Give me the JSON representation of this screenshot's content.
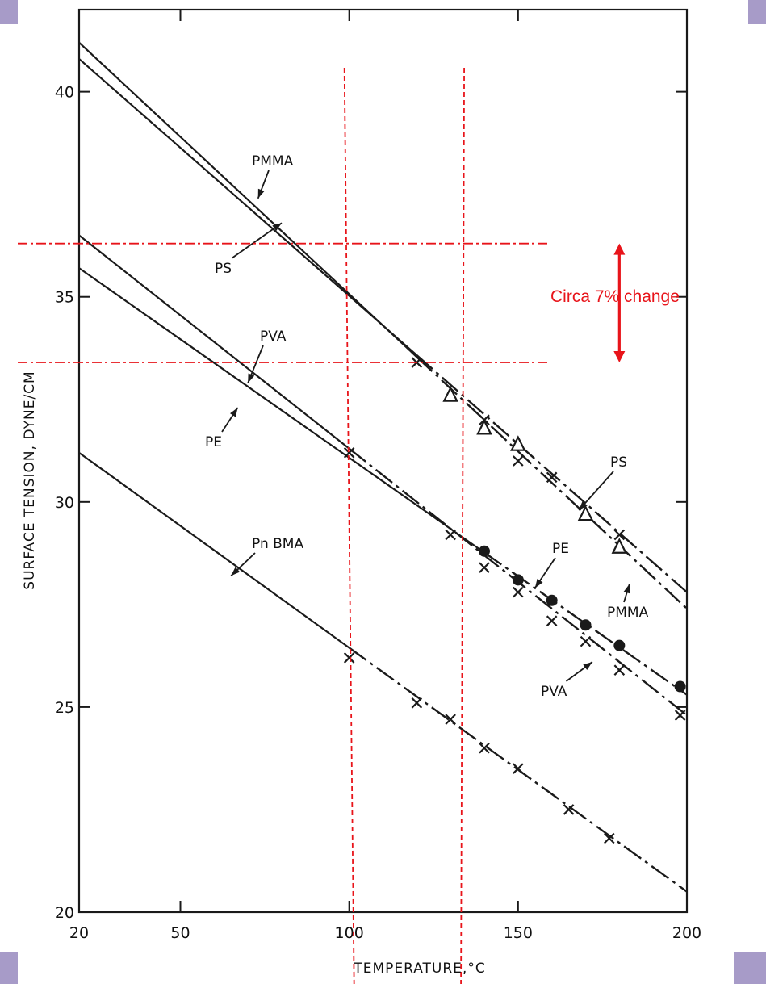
{
  "colors": {
    "ink": "#1a1a1a",
    "annotation": "#e8141a",
    "corner_accent": "#a79bc8"
  },
  "chart_data": {
    "type": "line",
    "title": "",
    "xlabel": "TEMPERATURE,°C",
    "ylabel": "SURFACE TENSION, DYNE/CM",
    "xlim": [
      20,
      200
    ],
    "ylim": [
      20,
      42
    ],
    "x_ticks": [
      {
        "value": 20,
        "label": "20"
      },
      {
        "value": 50,
        "label": "50"
      },
      {
        "value": 100,
        "label": "100"
      },
      {
        "value": 150,
        "label": "150"
      },
      {
        "value": 200,
        "label": "200"
      }
    ],
    "y_ticks": [
      {
        "value": 20,
        "label": "20"
      },
      {
        "value": 25,
        "label": "25"
      },
      {
        "value": 30,
        "label": "30"
      },
      {
        "value": 35,
        "label": "35"
      },
      {
        "value": 40,
        "label": "40"
      }
    ],
    "grid": false,
    "legend": "none (series labeled with arrows on the plot)",
    "series": [
      {
        "name": "PMMA",
        "line": [
          [
            20,
            41.2
          ],
          [
            200,
            27.4
          ]
        ],
        "measured_from": 120,
        "marker": "none"
      },
      {
        "name": "PS",
        "line": [
          [
            20,
            40.8
          ],
          [
            200,
            27.8
          ]
        ],
        "measured_from": 120,
        "marker": "triangle",
        "points": [
          [
            130,
            32.6
          ],
          [
            140,
            31.8
          ],
          [
            150,
            31.4
          ],
          [
            170,
            29.7
          ],
          [
            180,
            28.9
          ]
        ]
      },
      {
        "name": "PVA",
        "line": [
          [
            20,
            36.5
          ],
          [
            200,
            24.8
          ]
        ],
        "measured_from": 100,
        "marker": "x",
        "points": [
          [
            100,
            31.2
          ],
          [
            130,
            29.2
          ],
          [
            140,
            28.4
          ],
          [
            150,
            27.8
          ],
          [
            160,
            27.1
          ],
          [
            170,
            26.6
          ],
          [
            180,
            25.9
          ],
          [
            198,
            24.8
          ]
        ]
      },
      {
        "name": "PE",
        "line": [
          [
            20,
            35.7
          ],
          [
            200,
            25.3
          ]
        ],
        "measured_from": 140,
        "marker": "dot",
        "points": [
          [
            140,
            28.8
          ],
          [
            150,
            28.1
          ],
          [
            160,
            27.6
          ],
          [
            170,
            27.0
          ],
          [
            180,
            26.5
          ],
          [
            198,
            25.5
          ]
        ]
      },
      {
        "name": "Pn BMA",
        "line": [
          [
            20,
            31.2
          ],
          [
            200,
            20.5
          ]
        ],
        "measured_from": 100,
        "marker": "x",
        "points": [
          [
            100,
            26.2
          ],
          [
            120,
            25.1
          ],
          [
            130,
            24.7
          ],
          [
            140,
            24.0
          ],
          [
            150,
            23.5
          ],
          [
            165,
            22.5
          ],
          [
            177,
            21.8
          ]
        ]
      }
    ],
    "extra_x_markers": [
      {
        "value": 120,
        "y": 33.3
      },
      {
        "value": 120,
        "y": 33.4
      }
    ],
    "extra_pmma_markers": [
      [
        120,
        33.4
      ],
      [
        140,
        32.0
      ],
      [
        150,
        31.0
      ],
      [
        160,
        30.6
      ],
      [
        180,
        29.2
      ]
    ],
    "labels": [
      {
        "text": "PMMA",
        "series": "PMMA",
        "arrow_to": [
          73,
          37.4
        ]
      },
      {
        "text": "PS",
        "series": "PS",
        "arrow_to": [
          80,
          36.8
        ]
      },
      {
        "text": "PVA",
        "series": "PVA",
        "arrow_to": [
          70,
          32.9
        ]
      },
      {
        "text": "PE",
        "series": "PE",
        "arrow_to": [
          67,
          32.3
        ]
      },
      {
        "text": "Pn BMA",
        "series": "Pn BMA",
        "arrow_to": [
          65,
          28.2
        ]
      },
      {
        "text": "PS",
        "series": "PS",
        "arrow_to": [
          168,
          29.8
        ]
      },
      {
        "text": "PMMA",
        "series": "PMMA",
        "arrow_to": [
          183,
          28.0
        ]
      },
      {
        "text": "PE",
        "series": "PE",
        "arrow_to": [
          155,
          27.9
        ]
      },
      {
        "text": "PVA",
        "series": "PVA",
        "arrow_to": [
          172,
          26.1
        ]
      }
    ],
    "annotations": {
      "vertical_guides_x": [
        100,
        135
      ],
      "horizontal_guides_y": [
        36.3,
        33.4
      ],
      "range_arrow_x": 180,
      "text": "Circa 7% change"
    }
  }
}
